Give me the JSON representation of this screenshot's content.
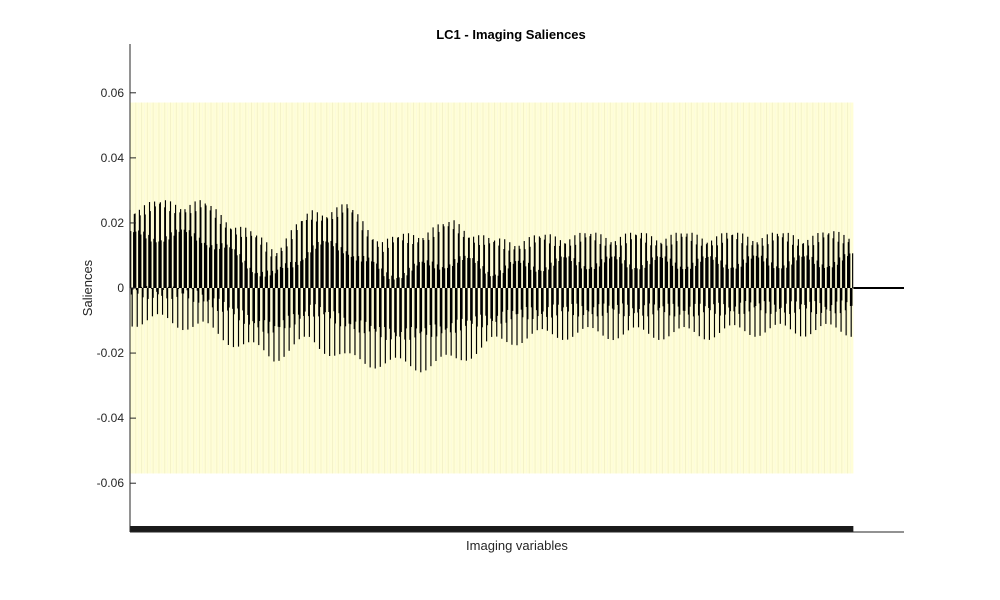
{
  "chart_data": {
    "type": "bar",
    "title": "LC1 - Imaging Saliences",
    "xlabel": "Imaging variables",
    "ylabel": "Saliences",
    "ylim": [
      -0.075,
      0.075
    ],
    "yticks": [
      -0.06,
      -0.04,
      -0.02,
      0,
      0.02,
      0.04,
      0.06
    ],
    "ytick_labels": [
      "-0.06",
      "-0.04",
      "-0.02",
      "0",
      "0.02",
      "0.04",
      "0.06"
    ],
    "xlim": [
      0,
      1070
    ],
    "n_variables": 1000,
    "shaded_band": {
      "ymin": -0.057,
      "ymax": 0.057,
      "color": "#fffed7"
    },
    "bar_color": "#000000",
    "envelope": {
      "x": [
        0,
        50,
        100,
        150,
        200,
        250,
        300,
        350,
        400,
        450,
        500,
        550,
        600,
        650,
        700,
        750,
        800,
        850,
        900,
        950,
        1000
      ],
      "upper": [
        0.024,
        0.025,
        0.025,
        0.018,
        0.011,
        0.022,
        0.024,
        0.013,
        0.016,
        0.019,
        0.013,
        0.014,
        0.015,
        0.015,
        0.015,
        0.015,
        0.015,
        0.015,
        0.015,
        0.015,
        0.016
      ],
      "lower": [
        -0.01,
        -0.01,
        -0.012,
        -0.017,
        -0.021,
        -0.016,
        -0.022,
        -0.023,
        -0.024,
        -0.022,
        -0.017,
        -0.015,
        -0.014,
        -0.014,
        -0.014,
        -0.014,
        -0.014,
        -0.013,
        -0.013,
        -0.013,
        -0.013
      ]
    },
    "grid": false,
    "legend": "none"
  }
}
